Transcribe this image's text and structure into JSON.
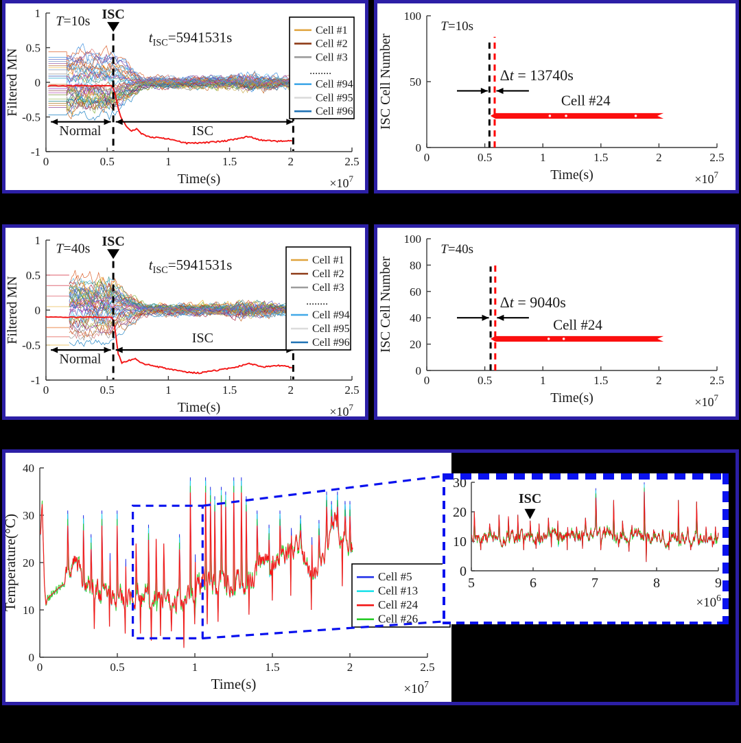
{
  "figure_background": "#000000",
  "colors": {
    "panel_border": "#2c1fa6",
    "zoom_blue": "#0a12ee",
    "axis": "#3a3a3a",
    "red_series": "#f31515",
    "band_red": "#fb0f0f"
  },
  "ensemble_palette": [
    "#0072BD",
    "#D95319",
    "#EDB120",
    "#7E2F8E",
    "#77AC30",
    "#4DBEEE",
    "#A2142F",
    "#5A9BD4",
    "#C55A11",
    "#8C8C8C",
    "#2F8E7E",
    "#B44FCE",
    "#348ADE",
    "#C6A43C",
    "#5A5AC8",
    "#D46A6A"
  ],
  "chart_data": [
    {
      "id": "filtered_mn_T10",
      "type": "line",
      "kind": "mn",
      "title_pieces": [
        {
          "t": "T",
          "style": "i"
        },
        {
          "t": "=10s"
        }
      ],
      "xlabel": "Time(s)",
      "ylabel": "Filtered MN",
      "x_exp": [
        {
          "t": "×10"
        },
        {
          "t": "7",
          "style": "sup"
        }
      ],
      "xlim": [
        0,
        2.5
      ],
      "ylim": [
        -1,
        1
      ],
      "xticks": [
        "0",
        "0.5",
        "1",
        "1.5",
        "2",
        "2.5"
      ],
      "yticks": [
        "-1",
        "-0.5",
        "0",
        "0.5",
        "1"
      ],
      "isc_marker_label": "ISC",
      "isc_x": 0.55,
      "end_x": 2.02,
      "t_isc_pieces": [
        {
          "t": "t",
          "style": "i"
        },
        {
          "t": "ISC",
          "style": "sub"
        },
        {
          "t": "=5941531s"
        }
      ],
      "normal_label": "Normal",
      "isc_region_label": "ISC",
      "isc_text_above": false,
      "legend": [
        {
          "label": "Cell #1",
          "color": "#E0A33B"
        },
        {
          "label": "Cell #2",
          "color": "#8E3A16"
        },
        {
          "label": "Cell #3",
          "color": "#9C9C9C"
        },
        {
          "label": "........",
          "color": ""
        },
        {
          "label": "Cell #94",
          "color": "#41A8E8"
        },
        {
          "label": "Cell #95",
          "color": "#DBDBDB"
        },
        {
          "label": "Cell #96",
          "color": "#1F72B4"
        }
      ],
      "red_flat_y": -0.05,
      "flat_start": 0.02,
      "flat_end": 0.17,
      "red_curve": [
        [
          0.55,
          -0.05
        ],
        [
          0.58,
          -0.3
        ],
        [
          0.61,
          -0.5
        ],
        [
          0.65,
          -0.62
        ],
        [
          0.7,
          -0.7
        ],
        [
          0.74,
          -0.67
        ],
        [
          0.78,
          -0.74
        ],
        [
          0.85,
          -0.79
        ],
        [
          0.95,
          -0.8
        ],
        [
          1.05,
          -0.84
        ],
        [
          1.15,
          -0.88
        ],
        [
          1.3,
          -0.87
        ],
        [
          1.45,
          -0.85
        ],
        [
          1.58,
          -0.81
        ],
        [
          1.66,
          -0.78
        ],
        [
          1.75,
          -0.83
        ],
        [
          1.88,
          -0.85
        ],
        [
          2.02,
          -0.85
        ]
      ],
      "flat_lines": [],
      "n_lines": 46,
      "seed": 11
    },
    {
      "id": "isc_cell_T10",
      "type": "line",
      "kind": "isc",
      "title_pieces": [
        {
          "t": "T",
          "style": "i"
        },
        {
          "t": "=10s"
        }
      ],
      "xlabel": "Time(s)",
      "ylabel": "ISC Cell Number",
      "x_exp": [
        {
          "t": "×10"
        },
        {
          "t": "7",
          "style": "sup"
        }
      ],
      "xlim": [
        0,
        2.5
      ],
      "ylim": [
        0,
        100
      ],
      "xticks": [
        "0",
        "0.5",
        "1",
        "1.5",
        "2",
        "2.5"
      ],
      "yticks": [
        "0",
        "50",
        "100"
      ],
      "delta_pieces": [
        {
          "t": "Δ"
        },
        {
          "t": "t",
          "style": "i"
        },
        {
          "t": " = 13740s"
        }
      ],
      "cell_label": "Cell #24",
      "black_dash_x": 0.54,
      "red_dash_x": 0.585,
      "dash_top": 82,
      "arrow_y": 43,
      "delta_pos": [
        0.63,
        51
      ],
      "cell_pos": [
        1.37,
        32
      ],
      "band": {
        "x0": 0.59,
        "x1": 2.04,
        "y": 24,
        "half": 2.1,
        "dots": [
          1.06,
          1.2,
          1.8
        ]
      }
    },
    {
      "id": "filtered_mn_T40",
      "type": "line",
      "kind": "mn",
      "title_pieces": [
        {
          "t": "T",
          "style": "i"
        },
        {
          "t": "=40s"
        }
      ],
      "xlabel": "Time(s)",
      "ylabel": "Filtered MN",
      "x_exp": [
        {
          "t": "×10"
        },
        {
          "t": "7",
          "style": "sup"
        }
      ],
      "xlim": [
        0,
        2.5
      ],
      "ylim": [
        -1,
        1
      ],
      "xticks": [
        "0",
        "0.5",
        "1",
        "1.5",
        "2",
        "2.5"
      ],
      "yticks": [
        "-1",
        "-0.5",
        "0",
        "0.5",
        "1"
      ],
      "isc_marker_label": "ISC",
      "isc_x": 0.55,
      "end_x": 2.02,
      "t_isc_pieces": [
        {
          "t": "t",
          "style": "i"
        },
        {
          "t": "ISC",
          "style": "sub"
        },
        {
          "t": "=5941531s"
        }
      ],
      "normal_label": "Normal",
      "isc_region_label": "ISC",
      "isc_text_above": true,
      "legend": [
        {
          "label": "Cell #1",
          "color": "#E0A33B"
        },
        {
          "label": "Cell #2",
          "color": "#8E3A16"
        },
        {
          "label": "Cell #3",
          "color": "#9C9C9C"
        },
        {
          "label": "........",
          "color": ""
        },
        {
          "label": "Cell #94",
          "color": "#41A8E8"
        },
        {
          "label": "Cell #95",
          "color": "#DBDBDB"
        },
        {
          "label": "Cell #96",
          "color": "#1F72B4"
        }
      ],
      "red_flat_y": -0.1,
      "flat_start": 0.0,
      "flat_end": 0.19,
      "red_curve": [
        [
          0.55,
          -0.1
        ],
        [
          0.57,
          -0.35
        ],
        [
          0.59,
          -0.62
        ],
        [
          0.62,
          -0.76
        ],
        [
          0.68,
          -0.72
        ],
        [
          0.73,
          -0.69
        ],
        [
          0.78,
          -0.76
        ],
        [
          0.88,
          -0.8
        ],
        [
          1.0,
          -0.84
        ],
        [
          1.12,
          -0.88
        ],
        [
          1.25,
          -0.9
        ],
        [
          1.4,
          -0.86
        ],
        [
          1.55,
          -0.82
        ],
        [
          1.65,
          -0.76
        ],
        [
          1.78,
          -0.81
        ],
        [
          1.92,
          -0.79
        ],
        [
          2.02,
          -0.83
        ]
      ],
      "flat_lines": [
        [
          0.5,
          "#E8929B"
        ],
        [
          0.35,
          "#E8929B"
        ],
        [
          0.2,
          "#ECA3AB"
        ],
        [
          0.05,
          "#F3DCA2"
        ],
        [
          -0.25,
          "#F2B088"
        ],
        [
          -0.38,
          "#EFA39E"
        ],
        [
          -0.5,
          "#F3DCA2"
        ]
      ],
      "n_lines": 46,
      "seed": 23
    },
    {
      "id": "isc_cell_T40",
      "type": "line",
      "kind": "isc",
      "title_pieces": [
        {
          "t": "T",
          "style": "i"
        },
        {
          "t": "=40s"
        }
      ],
      "xlabel": "Time(s)",
      "ylabel": "ISC Cell Number",
      "x_exp": [
        {
          "t": "×10"
        },
        {
          "t": "7",
          "style": "sup"
        }
      ],
      "xlim": [
        0,
        2.5
      ],
      "ylim": [
        0,
        100
      ],
      "xticks": [
        "0",
        "0.5",
        "1",
        "1.5",
        "2",
        "2.5"
      ],
      "yticks": [
        "0",
        "20",
        "40",
        "60",
        "80",
        "100"
      ],
      "delta_pieces": [
        {
          "t": "Δ"
        },
        {
          "t": "t",
          "style": "i"
        },
        {
          "t": " = 9040s"
        }
      ],
      "cell_label": "Cell #24",
      "black_dash_x": 0.55,
      "red_dash_x": 0.59,
      "dash_top": 79,
      "arrow_y": 40,
      "delta_pos": [
        0.63,
        48
      ],
      "cell_pos": [
        1.3,
        31
      ],
      "band": {
        "x0": 0.59,
        "x1": 2.04,
        "y": 24,
        "half": 2.1,
        "dots": [
          1.05,
          1.18
        ]
      }
    },
    {
      "id": "temperature",
      "type": "line",
      "kind": "temp",
      "xlabel": "Time(s)",
      "ylabel": "Temperature(°C)",
      "x_exp": [
        {
          "t": "×10"
        },
        {
          "t": "7",
          "style": "sup"
        }
      ],
      "xlim": [
        0,
        2.5
      ],
      "ylim": [
        0,
        40
      ],
      "xticks": [
        "0",
        "0.5",
        "1",
        "1.5",
        "2",
        "2.5"
      ],
      "yticks": [
        "0",
        "10",
        "20",
        "30",
        "40"
      ],
      "legend": [
        {
          "label": "Cell #5",
          "color": "#1F2FE8"
        },
        {
          "label": "Cell #13",
          "color": "#20E2EA"
        },
        {
          "label": "Cell #24",
          "color": "#F31515"
        },
        {
          "label": "Cell #26",
          "color": "#28CC28"
        }
      ],
      "base": [
        [
          0.005,
          26
        ],
        [
          0.015,
          33
        ],
        [
          0.03,
          15
        ],
        [
          0.04,
          11
        ],
        [
          0.05,
          12.5
        ],
        [
          0.16,
          15.5
        ],
        [
          0.18,
          19
        ],
        [
          0.22,
          20
        ],
        [
          0.28,
          17
        ],
        [
          0.33,
          15
        ],
        [
          0.38,
          13.5
        ],
        [
          0.45,
          13
        ],
        [
          0.55,
          12.5
        ],
        [
          0.65,
          12
        ],
        [
          0.75,
          12
        ],
        [
          0.85,
          11.5
        ],
        [
          0.93,
          12
        ],
        [
          0.97,
          14
        ],
        [
          1.0,
          13
        ],
        [
          1.05,
          16
        ],
        [
          1.1,
          16.5
        ],
        [
          1.15,
          15.5
        ],
        [
          1.2,
          15
        ],
        [
          1.27,
          16
        ],
        [
          1.33,
          16
        ],
        [
          1.38,
          18
        ],
        [
          1.45,
          20.5
        ],
        [
          1.52,
          20
        ],
        [
          1.58,
          21.5
        ],
        [
          1.65,
          23.5
        ],
        [
          1.7,
          22
        ],
        [
          1.75,
          17.5
        ],
        [
          1.8,
          20
        ],
        [
          1.85,
          24
        ],
        [
          1.9,
          28
        ],
        [
          1.95,
          26
        ],
        [
          2.0,
          24
        ],
        [
          2.02,
          22
        ]
      ],
      "noise_start": 0.165,
      "noise_amp": 2.6,
      "seed": 9,
      "spikes": [
        [
          0.18,
          31
        ],
        [
          0.28,
          30
        ],
        [
          0.33,
          26
        ],
        [
          0.4,
          31
        ],
        [
          0.45,
          30
        ],
        [
          0.5,
          31
        ],
        [
          0.55,
          28
        ],
        [
          0.62,
          24
        ],
        [
          0.7,
          28
        ],
        [
          0.75,
          25
        ],
        [
          0.8,
          24
        ],
        [
          0.9,
          26
        ],
        [
          0.97,
          38
        ],
        [
          1.0,
          33
        ],
        [
          1.07,
          38
        ],
        [
          1.1,
          36
        ],
        [
          1.13,
          34
        ],
        [
          1.17,
          36
        ],
        [
          1.2,
          35
        ],
        [
          1.25,
          38
        ],
        [
          1.3,
          38
        ],
        [
          1.33,
          34
        ],
        [
          1.4,
          31
        ],
        [
          1.48,
          28
        ],
        [
          1.55,
          31
        ],
        [
          1.62,
          31
        ],
        [
          1.68,
          30
        ],
        [
          1.75,
          34
        ],
        [
          1.8,
          29
        ],
        [
          1.85,
          35
        ],
        [
          1.88,
          33
        ],
        [
          1.92,
          35
        ],
        [
          1.97,
          33
        ],
        [
          2.0,
          33
        ]
      ],
      "dips": [
        [
          0.35,
          6
        ],
        [
          0.45,
          6.5
        ],
        [
          0.55,
          5
        ],
        [
          0.65,
          5
        ],
        [
          0.72,
          3.5
        ],
        [
          0.78,
          4.5
        ],
        [
          0.85,
          5.5
        ],
        [
          0.93,
          2
        ],
        [
          1.0,
          7
        ],
        [
          1.08,
          7
        ],
        [
          1.15,
          7.5
        ],
        [
          1.35,
          9
        ],
        [
          1.5,
          12
        ],
        [
          1.62,
          13
        ],
        [
          1.75,
          10
        ],
        [
          1.95,
          15
        ]
      ],
      "zoom_box": {
        "x0": 0.6,
        "x1": 1.05,
        "y0": 4,
        "y1": 32
      },
      "inset": {
        "isc_label": "ISC",
        "isc_x": 5.95,
        "xlim": [
          5,
          9
        ],
        "ylim": [
          0,
          30
        ],
        "xticks": [
          "5",
          "6",
          "7",
          "8",
          "9"
        ],
        "yticks": [
          "0",
          "10",
          "20",
          "30"
        ],
        "x_exp": [
          {
            "t": "×10"
          },
          {
            "t": "6",
            "style": "sup"
          }
        ],
        "base_level": 11.5,
        "noise_amp": 2.4,
        "seed": 17,
        "spikes": [
          [
            5.05,
            20
          ],
          [
            5.3,
            16
          ],
          [
            5.45,
            19
          ],
          [
            5.6,
            18.5
          ],
          [
            5.75,
            19
          ],
          [
            5.95,
            17
          ],
          [
            6.1,
            16
          ],
          [
            6.25,
            18
          ],
          [
            6.4,
            17
          ],
          [
            6.55,
            16
          ],
          [
            6.7,
            15
          ],
          [
            6.85,
            18
          ],
          [
            7.02,
            28
          ],
          [
            7.15,
            15
          ],
          [
            7.3,
            24
          ],
          [
            7.45,
            17
          ],
          [
            7.6,
            15.5
          ],
          [
            7.8,
            30
          ],
          [
            7.95,
            14
          ],
          [
            8.1,
            14
          ],
          [
            8.35,
            24
          ],
          [
            8.5,
            15
          ],
          [
            8.65,
            23.5
          ],
          [
            8.8,
            15
          ],
          [
            8.95,
            15
          ]
        ],
        "dips": [
          [
            5.15,
            7
          ],
          [
            5.5,
            8
          ],
          [
            5.85,
            7
          ],
          [
            6.05,
            7.5
          ],
          [
            6.3,
            8
          ],
          [
            6.55,
            7
          ],
          [
            6.8,
            7.5
          ],
          [
            7.1,
            7
          ],
          [
            7.38,
            8
          ],
          [
            7.55,
            6.5
          ],
          [
            7.83,
            3
          ],
          [
            8.2,
            7
          ],
          [
            8.55,
            7
          ],
          [
            8.9,
            8
          ]
        ]
      }
    }
  ]
}
